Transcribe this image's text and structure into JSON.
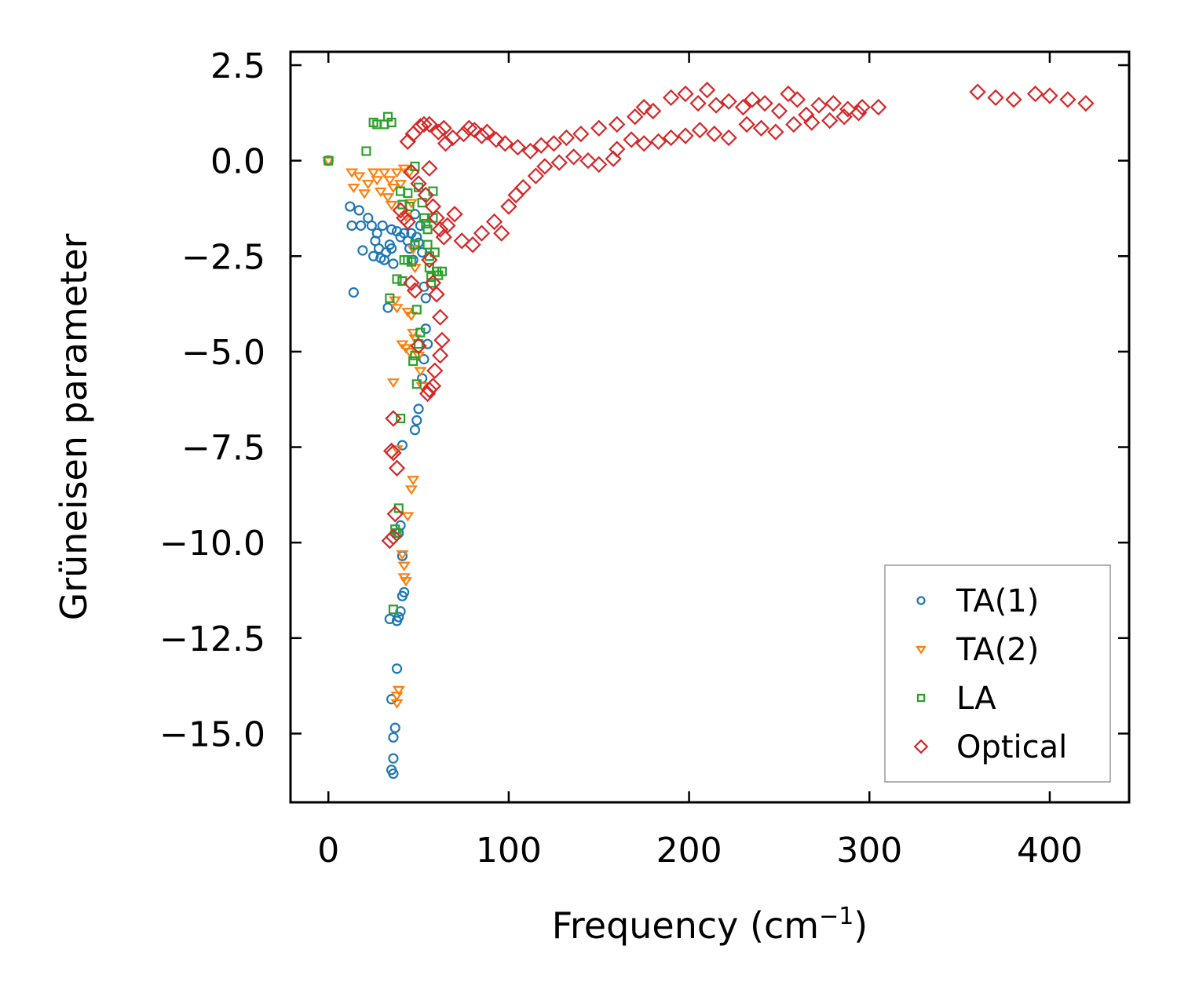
{
  "chart_data": {
    "type": "scatter",
    "xlabel": "Frequency (cm",
    "xlabel_sup": "−1",
    "xlabel_end": ")",
    "ylabel": "Grüneisen parameter",
    "xlim": [
      -21,
      444
    ],
    "ylim": [
      -16.8,
      2.85
    ],
    "x_ticks": [
      0,
      100,
      200,
      300,
      400
    ],
    "y_ticks": [
      2.5,
      0.0,
      -2.5,
      -5.0,
      -7.5,
      -10.0,
      -12.5,
      -15.0
    ],
    "x_tick_labels": [
      "0",
      "100",
      "200",
      "300",
      "400"
    ],
    "y_tick_labels": [
      "2.5",
      "0.0",
      "−2.5",
      "−5.0",
      "−7.5",
      "−10.0",
      "−12.5",
      "−15.0"
    ],
    "legend_position": "lower-right",
    "series": [
      {
        "name": "TA(1)",
        "marker": "circle",
        "color": "#1f77b4",
        "points": [
          [
            0,
            0
          ],
          [
            12,
            -1.2
          ],
          [
            13,
            -1.7
          ],
          [
            14,
            -3.45
          ],
          [
            17,
            -1.3
          ],
          [
            18,
            -1.7
          ],
          [
            19,
            -2.35
          ],
          [
            22,
            -1.5
          ],
          [
            24,
            -1.7
          ],
          [
            25,
            -2.5
          ],
          [
            26,
            -2.1
          ],
          [
            27,
            -1.9
          ],
          [
            28,
            -2.3
          ],
          [
            29,
            -2.55
          ],
          [
            30,
            -1.7
          ],
          [
            31,
            -2.6
          ],
          [
            32,
            -2.4
          ],
          [
            33,
            -3.85
          ],
          [
            34,
            -2.2
          ],
          [
            35,
            -2.3
          ],
          [
            35,
            -1.8
          ],
          [
            36,
            -2.7
          ],
          [
            38,
            -1.85
          ],
          [
            40,
            -2.0
          ],
          [
            42,
            -1.9
          ],
          [
            44,
            -2.1
          ],
          [
            45,
            -2.3
          ],
          [
            46,
            -1.9
          ],
          [
            47,
            -2.6
          ],
          [
            48,
            -1.4
          ],
          [
            49,
            -2.0
          ],
          [
            50,
            -2.15
          ],
          [
            51,
            -1.7
          ],
          [
            52,
            -2.4
          ],
          [
            53,
            -3.3
          ],
          [
            54,
            -3.6
          ],
          [
            54,
            -4.4
          ],
          [
            55,
            -4.8
          ],
          [
            53,
            -5.2
          ],
          [
            52,
            -5.7
          ],
          [
            50,
            -6.5
          ],
          [
            49,
            -6.8
          ],
          [
            48,
            -7.05
          ],
          [
            41,
            -7.45
          ],
          [
            40,
            -9.55
          ],
          [
            39,
            -9.75
          ],
          [
            41,
            -10.35
          ],
          [
            42,
            -11.3
          ],
          [
            41,
            -11.4
          ],
          [
            40,
            -11.8
          ],
          [
            39,
            -11.95
          ],
          [
            38,
            -12.05
          ],
          [
            34,
            -12.0
          ],
          [
            38,
            -13.3
          ],
          [
            35,
            -14.1
          ],
          [
            37,
            -14.85
          ],
          [
            36,
            -15.1
          ],
          [
            36,
            -15.65
          ],
          [
            35,
            -15.95
          ],
          [
            36,
            -16.05
          ]
        ]
      },
      {
        "name": "TA(2)",
        "marker": "triangle-down",
        "color": "#ff7f0e",
        "points": [
          [
            0,
            0
          ],
          [
            13,
            -0.3
          ],
          [
            14,
            -0.7
          ],
          [
            17,
            -0.4
          ],
          [
            20,
            -0.85
          ],
          [
            22,
            -0.6
          ],
          [
            25,
            -0.3
          ],
          [
            27,
            -0.5
          ],
          [
            29,
            -0.8
          ],
          [
            31,
            -0.3
          ],
          [
            33,
            -0.95
          ],
          [
            34,
            -0.5
          ],
          [
            35,
            -1.15
          ],
          [
            36,
            -0.7
          ],
          [
            38,
            -0.3
          ],
          [
            40,
            -0.6
          ],
          [
            42,
            -0.2
          ],
          [
            43,
            -1.45
          ],
          [
            45,
            -0.3
          ],
          [
            46,
            -1.1
          ],
          [
            47,
            -2.3
          ],
          [
            48,
            -2.8
          ],
          [
            37,
            -3.65
          ],
          [
            38,
            -3.85
          ],
          [
            44,
            -3.95
          ],
          [
            46,
            -4.05
          ],
          [
            47,
            -4.5
          ],
          [
            48,
            -4.65
          ],
          [
            50,
            -5.1
          ],
          [
            51,
            -5.5
          ],
          [
            52,
            -5.9
          ],
          [
            45,
            -5.0
          ],
          [
            43,
            -4.9
          ],
          [
            41,
            -4.8
          ],
          [
            36,
            -5.8
          ],
          [
            38,
            -7.55
          ],
          [
            47,
            -8.35
          ],
          [
            46,
            -8.6
          ],
          [
            44,
            -9.3
          ],
          [
            41,
            -10.3
          ],
          [
            42,
            -10.6
          ],
          [
            42,
            -10.9
          ],
          [
            43,
            -11.0
          ],
          [
            39,
            -13.85
          ],
          [
            38,
            -14.0
          ],
          [
            38,
            -14.2
          ]
        ]
      },
      {
        "name": "LA",
        "marker": "square",
        "color": "#2ca02c",
        "points": [
          [
            0,
            0
          ],
          [
            21,
            0.25
          ],
          [
            25,
            1.0
          ],
          [
            27,
            0.95
          ],
          [
            31,
            0.95
          ],
          [
            33,
            1.15
          ],
          [
            35,
            1.0
          ],
          [
            40,
            -0.8
          ],
          [
            41,
            -1.15
          ],
          [
            44,
            -0.85
          ],
          [
            45,
            -1.2
          ],
          [
            48,
            -0.15
          ],
          [
            50,
            -0.7
          ],
          [
            52,
            -1.1
          ],
          [
            53,
            -1.5
          ],
          [
            54,
            -1.65
          ],
          [
            55,
            -1.8
          ],
          [
            55,
            -2.2
          ],
          [
            56,
            -2.5
          ],
          [
            56,
            -2.8
          ],
          [
            57,
            -3.05
          ],
          [
            57,
            -3.2
          ],
          [
            58,
            -0.8
          ],
          [
            58,
            -1.5
          ],
          [
            59,
            -2.4
          ],
          [
            60,
            -2.9
          ],
          [
            61,
            -3.0
          ],
          [
            63,
            -2.9
          ],
          [
            48,
            -2.2
          ],
          [
            46,
            -2.65
          ],
          [
            44,
            -2.6
          ],
          [
            42,
            -2.6
          ],
          [
            38,
            -3.1
          ],
          [
            41,
            -3.15
          ],
          [
            34,
            -3.6
          ],
          [
            49,
            -3.9
          ],
          [
            51,
            -4.5
          ],
          [
            50,
            -4.8
          ],
          [
            48,
            -5.1
          ],
          [
            47,
            -5.25
          ],
          [
            49,
            -5.85
          ],
          [
            40,
            -6.75
          ],
          [
            39,
            -9.1
          ],
          [
            37,
            -9.65
          ],
          [
            38,
            -9.75
          ],
          [
            36,
            -11.75
          ]
        ]
      },
      {
        "name": "Optical",
        "marker": "diamond",
        "color": "#d62728",
        "points": [
          [
            44,
            0.5
          ],
          [
            47,
            0.7
          ],
          [
            51,
            0.9
          ],
          [
            53,
            0.95
          ],
          [
            56,
            0.95
          ],
          [
            61,
            0.75
          ],
          [
            64,
            0.85
          ],
          [
            65,
            0.45
          ],
          [
            69,
            0.6
          ],
          [
            75,
            0.7
          ],
          [
            78,
            0.85
          ],
          [
            81,
            0.8
          ],
          [
            85,
            0.65
          ],
          [
            88,
            0.75
          ],
          [
            93,
            0.55
          ],
          [
            98,
            0.45
          ],
          [
            105,
            0.35
          ],
          [
            112,
            0.25
          ],
          [
            118,
            0.4
          ],
          [
            125,
            0.45
          ],
          [
            132,
            0.6
          ],
          [
            140,
            0.7
          ],
          [
            150,
            0.85
          ],
          [
            160,
            0.95
          ],
          [
            170,
            1.15
          ],
          [
            175,
            1.4
          ],
          [
            180,
            1.3
          ],
          [
            190,
            1.65
          ],
          [
            198,
            1.75
          ],
          [
            205,
            1.5
          ],
          [
            210,
            1.85
          ],
          [
            215,
            1.45
          ],
          [
            222,
            1.55
          ],
          [
            230,
            1.4
          ],
          [
            235,
            1.6
          ],
          [
            242,
            1.5
          ],
          [
            250,
            1.3
          ],
          [
            255,
            1.75
          ],
          [
            260,
            1.6
          ],
          [
            265,
            1.2
          ],
          [
            272,
            1.45
          ],
          [
            280,
            1.5
          ],
          [
            288,
            1.35
          ],
          [
            296,
            1.4
          ],
          [
            305,
            1.4
          ],
          [
            360,
            1.8
          ],
          [
            370,
            1.65
          ],
          [
            380,
            1.6
          ],
          [
            392,
            1.75
          ],
          [
            400,
            1.7
          ],
          [
            410,
            1.6
          ],
          [
            420,
            1.5
          ],
          [
            46,
            -0.3
          ],
          [
            50,
            -0.6
          ],
          [
            54,
            -0.9
          ],
          [
            56,
            -0.2
          ],
          [
            58,
            -1.2
          ],
          [
            60,
            -1.5
          ],
          [
            62,
            -1.8
          ],
          [
            64,
            -2.0
          ],
          [
            66,
            -1.7
          ],
          [
            70,
            -1.4
          ],
          [
            74,
            -2.1
          ],
          [
            80,
            -2.2
          ],
          [
            85,
            -1.9
          ],
          [
            92,
            -1.6
          ],
          [
            96,
            -1.9
          ],
          [
            100,
            -1.2
          ],
          [
            104,
            -0.9
          ],
          [
            108,
            -0.7
          ],
          [
            115,
            -0.4
          ],
          [
            120,
            -0.15
          ],
          [
            128,
            -0.05
          ],
          [
            136,
            0.1
          ],
          [
            144,
            0.0
          ],
          [
            150,
            -0.1
          ],
          [
            158,
            0.05
          ],
          [
            160,
            0.3
          ],
          [
            168,
            0.55
          ],
          [
            175,
            0.45
          ],
          [
            183,
            0.5
          ],
          [
            190,
            0.6
          ],
          [
            198,
            0.65
          ],
          [
            206,
            0.8
          ],
          [
            214,
            0.7
          ],
          [
            222,
            0.6
          ],
          [
            232,
            0.95
          ],
          [
            240,
            0.85
          ],
          [
            248,
            0.75
          ],
          [
            258,
            0.95
          ],
          [
            268,
            1.0
          ],
          [
            278,
            1.05
          ],
          [
            286,
            1.15
          ],
          [
            294,
            1.25
          ],
          [
            56,
            -2.6
          ],
          [
            58,
            -3.2
          ],
          [
            60,
            -3.5
          ],
          [
            62,
            -4.1
          ],
          [
            63,
            -4.7
          ],
          [
            62,
            -5.1
          ],
          [
            59,
            -5.5
          ],
          [
            58,
            -5.9
          ],
          [
            56,
            -6.0
          ],
          [
            55,
            -6.1
          ],
          [
            50,
            -4.85
          ],
          [
            48,
            -3.4
          ],
          [
            46,
            -3.2
          ],
          [
            44,
            -1.6
          ],
          [
            42,
            -1.5
          ],
          [
            40,
            -1.3
          ],
          [
            36,
            -6.75
          ],
          [
            35,
            -7.6
          ],
          [
            36,
            -7.65
          ],
          [
            38,
            -8.05
          ],
          [
            37,
            -9.25
          ],
          [
            36,
            -9.85
          ],
          [
            34,
            -9.95
          ]
        ]
      }
    ]
  }
}
